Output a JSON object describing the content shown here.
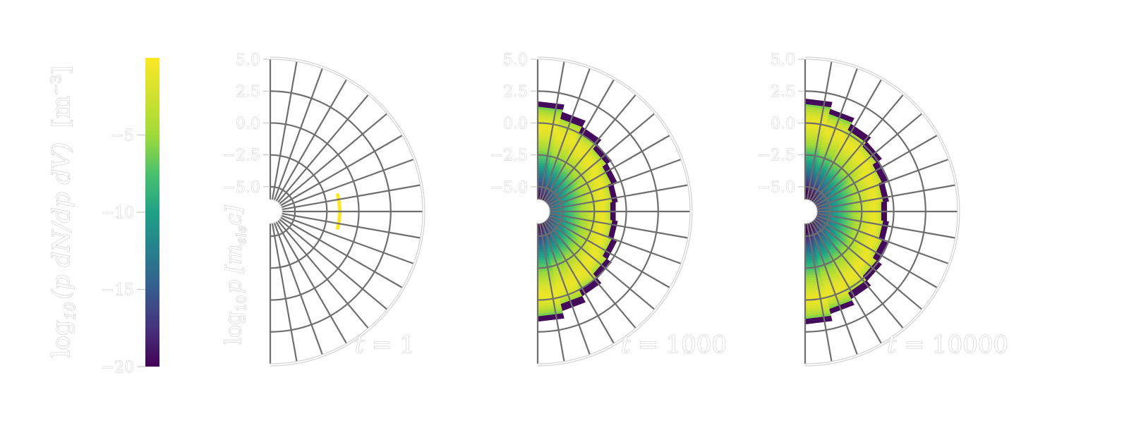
{
  "colorbar": {
    "label_main": "log",
    "label_sub": "10",
    "label_expr": "(p dN/dp dV)",
    "label_unit": "[m",
    "label_unit_exp": "−3",
    "label_unit_close": "]",
    "ticks": [
      -5,
      -10,
      -15,
      -20
    ],
    "tick_labels": [
      "−5",
      "−10",
      "−15",
      "−20"
    ],
    "vmin": -20,
    "vmax": 0,
    "colormap": "viridis"
  },
  "chart_data": [
    {
      "type": "heatmap",
      "projection": "polar-half",
      "annotation_var": "t",
      "annotation_value": "1",
      "radial_label": "log",
      "radial_label_sub": "10",
      "radial_label_rest": "p [m",
      "radial_label_sub2": "ele",
      "radial_label_end": "c]",
      "rticks": [
        5.0,
        2.5,
        0.0,
        -2.5,
        -5.0
      ],
      "rtick_labels": [
        "5.0",
        "2.5",
        "0.0",
        "−2.5",
        "−5.0"
      ],
      "rlim": [
        -6,
        5
      ],
      "theta_range_deg": [
        -90,
        90
      ],
      "distribution": {
        "kind": "delta-shell",
        "log10p": -1.5,
        "value": 0,
        "half_angle_deg": 15
      }
    },
    {
      "type": "heatmap",
      "projection": "polar-half",
      "annotation_var": "t",
      "annotation_value": "1000",
      "rticks": [
        5.0,
        2.5,
        0.0,
        -2.5,
        -5.0
      ],
      "rtick_labels": [
        "5.0",
        "2.5",
        "0.0",
        "−2.5",
        "−5.0"
      ],
      "rlim": [
        -6,
        5
      ],
      "theta_range_deg": [
        -90,
        90
      ],
      "distribution": {
        "kind": "filled",
        "log10p_peak": -1.9,
        "log10p_max_equator": -0.8,
        "log10p_max_pole": 2.0,
        "peak_value": -1
      }
    },
    {
      "type": "heatmap",
      "projection": "polar-half",
      "annotation_var": "t",
      "annotation_value": "10000",
      "rticks": [
        5.0,
        2.5,
        0.0,
        -2.5,
        -5.0
      ],
      "rtick_labels": [
        "5.0",
        "2.5",
        "0.0",
        "−2.5",
        "−5.0"
      ],
      "rlim": [
        -6,
        5
      ],
      "theta_range_deg": [
        -90,
        90
      ],
      "distribution": {
        "kind": "filled",
        "log10p_peak": -1.5,
        "log10p_max_equator": -0.5,
        "log10p_max_pole": 2.2,
        "peak_value": -1
      }
    }
  ]
}
